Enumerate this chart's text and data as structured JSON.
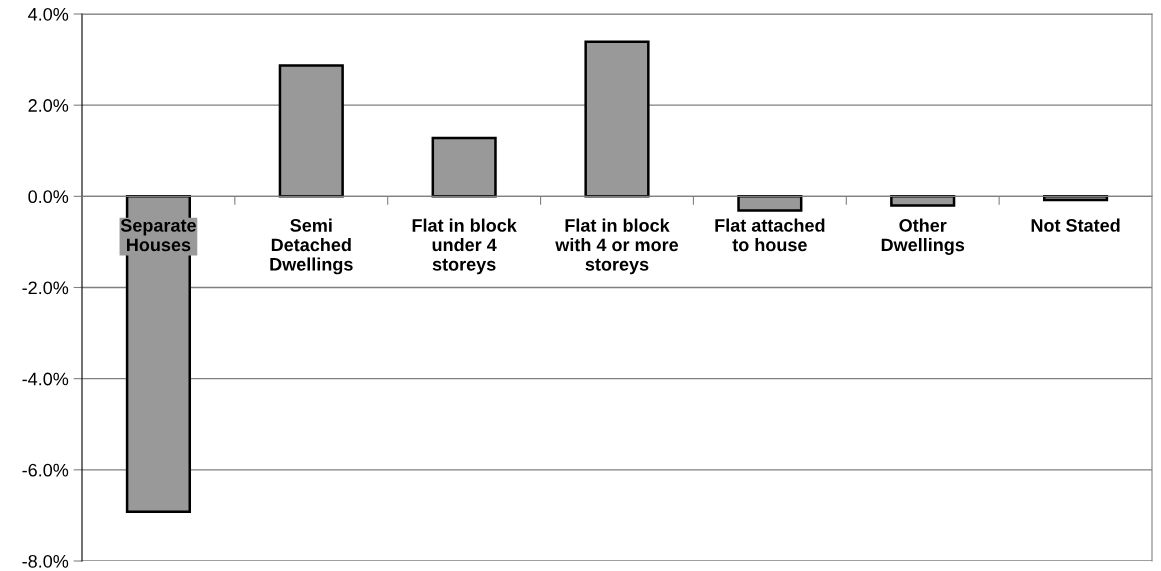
{
  "chart_data": {
    "type": "bar",
    "categories": [
      "Separate\nHouses",
      "Semi\nDetached\nDwellings",
      "Flat in block\nunder 4\nstoreys",
      "Flat in block\nwith 4 or more\nstoreys",
      "Flat attached\nto house",
      "Other\nDwellings",
      "Not Stated"
    ],
    "values": [
      -6.92,
      2.87,
      1.28,
      3.39,
      -0.31,
      -0.2,
      -0.08
    ],
    "color": "#999999",
    "ylim": [
      -8,
      4
    ],
    "yticks": [
      {
        "value": -8,
        "label": "-8.0%"
      },
      {
        "value": -6,
        "label": "-6.0%"
      },
      {
        "value": -4,
        "label": "-4.0%"
      },
      {
        "value": -2,
        "label": "-2.0%"
      },
      {
        "value": 0,
        "label": "0.0%"
      },
      {
        "value": 2,
        "label": "2.0%"
      },
      {
        "value": 4,
        "label": "4.0%"
      }
    ],
    "grid": "y",
    "legend": false
  }
}
